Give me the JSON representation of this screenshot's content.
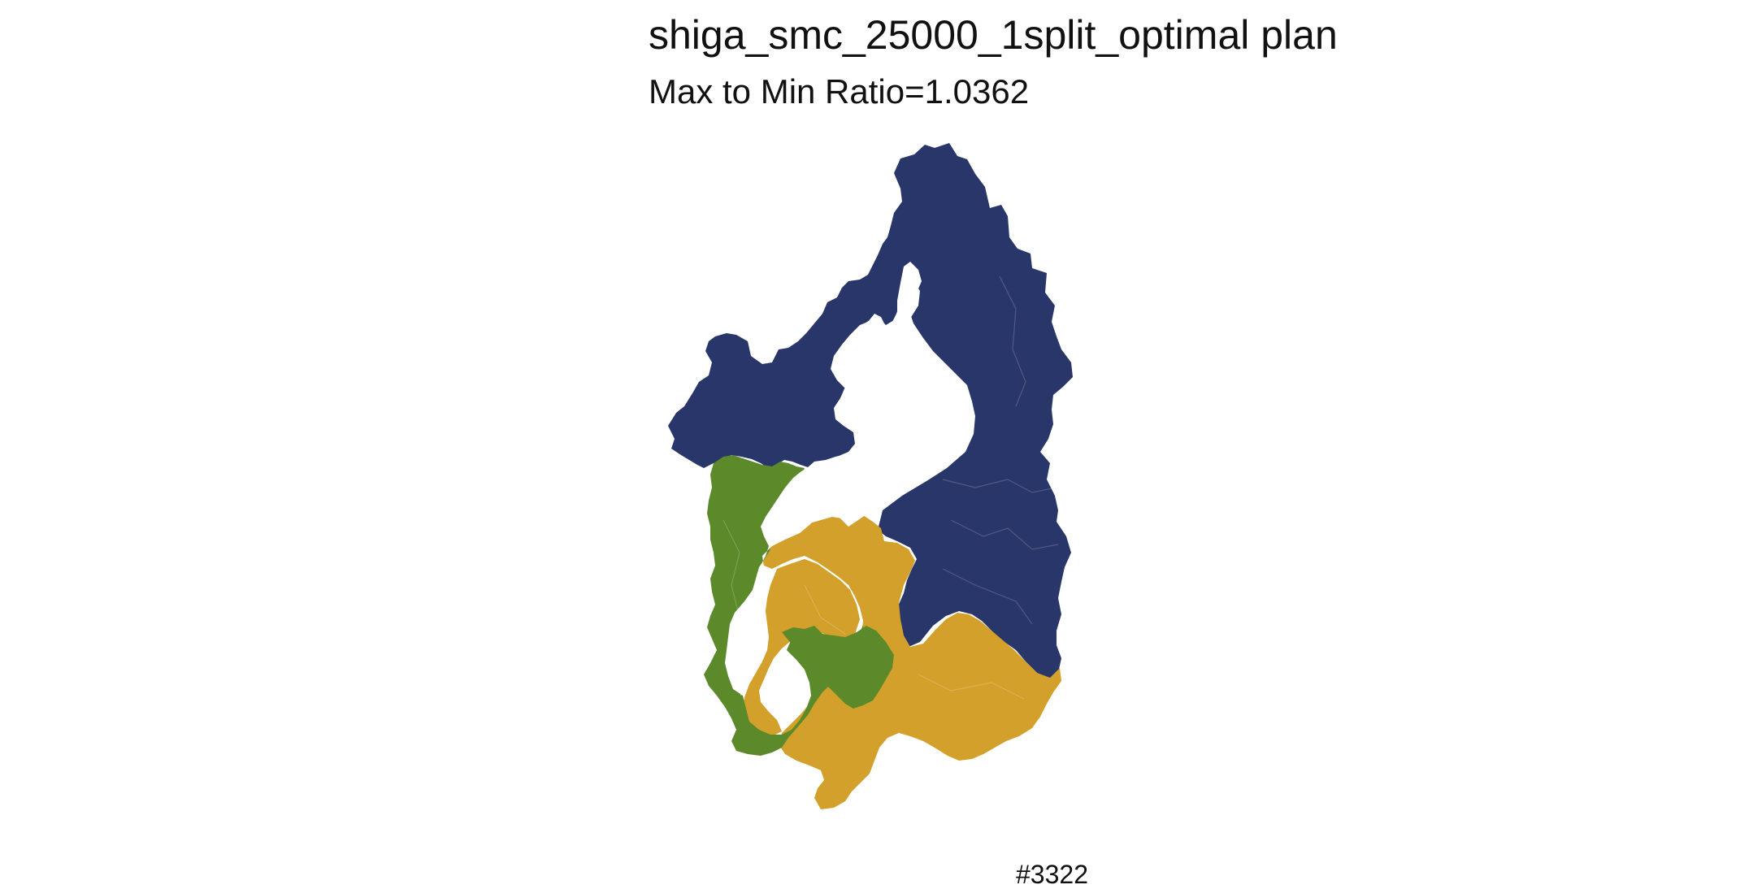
{
  "title": "shiga_smc_25000_1split_optimal plan",
  "subtitle": "Max to Min Ratio=1.0362",
  "plan_id": "#3322",
  "districts": [
    {
      "id": 1,
      "color": "#28366a"
    },
    {
      "id": 2,
      "color": "#5c8a2b"
    },
    {
      "id": 3,
      "color": "#d3a02c"
    }
  ]
}
